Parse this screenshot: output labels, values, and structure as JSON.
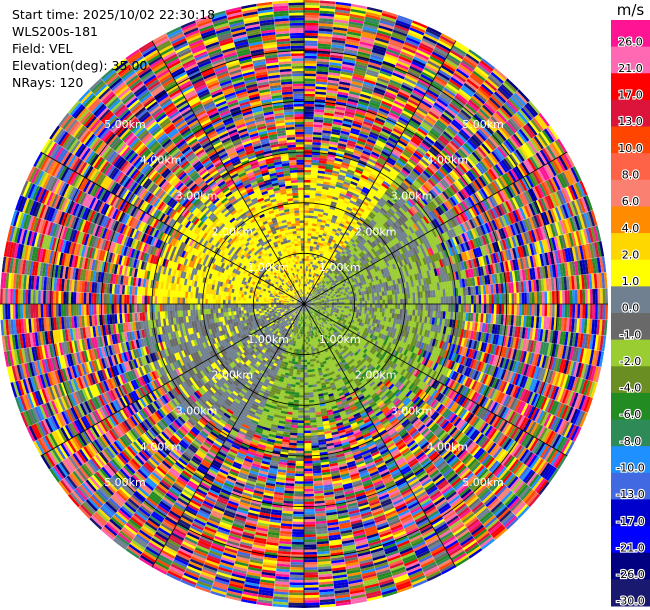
{
  "header": {
    "start_time": "Start time: 2025/10/02 22:30:18",
    "site": "WLS200s-181",
    "field": "Field: VEL",
    "elevation": "Elevation(deg): 35.00",
    "nrays": "NRays: 120"
  },
  "chart_data": {
    "type": "heatmap",
    "projection": "polar",
    "field": "VEL",
    "nrays": 120,
    "elevation_deg": 35.0,
    "max_range_km": 6.0,
    "range_ring_labels": [
      "1.00km",
      "2.00km",
      "3.00km",
      "4.00km",
      "5.00km"
    ],
    "range_rings_km": [
      1,
      2,
      3,
      4,
      5
    ],
    "colorbar": {
      "unit": "m/s",
      "ticks": [
        "26.0",
        "21.0",
        "17.0",
        "13.0",
        "10.0",
        "8.0",
        "6.0",
        "4.0",
        "2.0",
        "1.0",
        "0.0",
        "-1.0",
        "-2.0",
        "-4.0",
        "-6.0",
        "-8.0",
        "-10.0",
        "-13.0",
        "-17.0",
        "-21.0",
        "-26.0",
        "-30.0"
      ],
      "colors": [
        "#ff1493",
        "#ff69b4",
        "#ff0000",
        "#dc143c",
        "#ff4500",
        "#ff6347",
        "#fa8072",
        "#ff8c00",
        "#ffd700",
        "#ffff00",
        "#708090",
        "#696969",
        "#9acd32",
        "#6b8e23",
        "#228b22",
        "#2e8b57",
        "#1e90ff",
        "#4169e1",
        "#0000cd",
        "#0000ff",
        "#000080",
        "#191970"
      ]
    }
  }
}
